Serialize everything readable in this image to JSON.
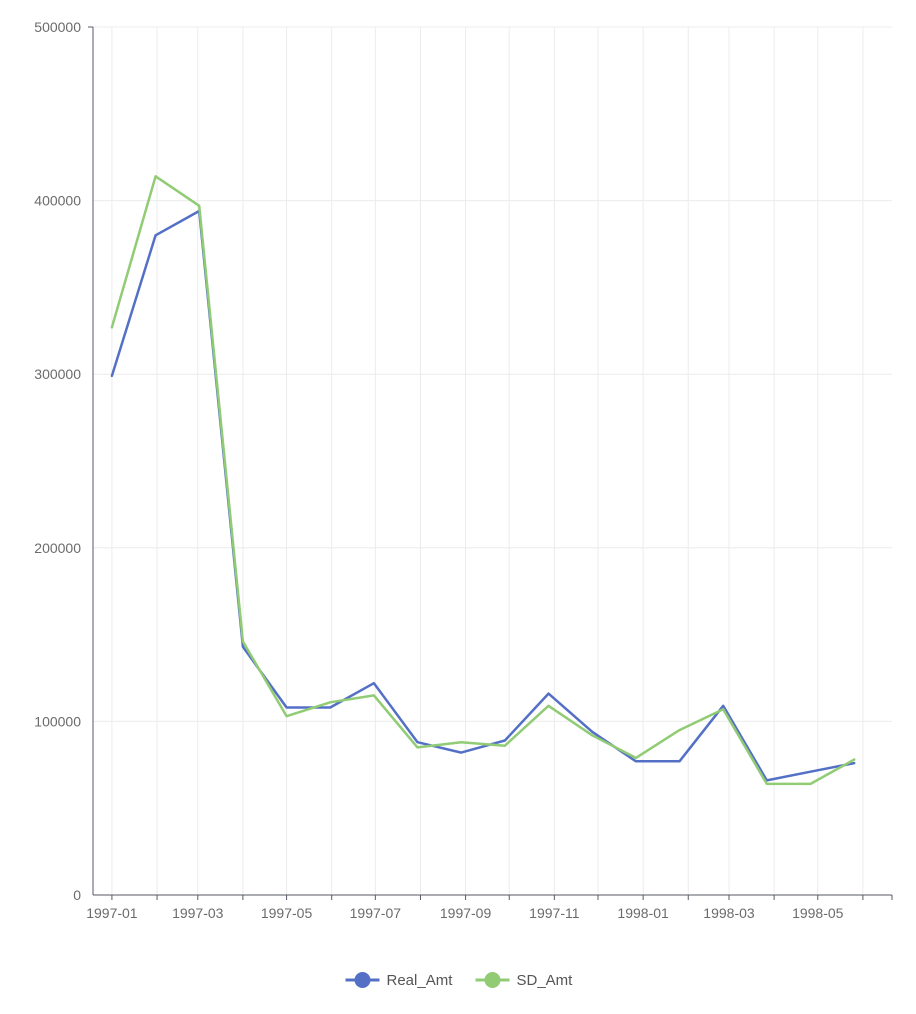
{
  "chart_data": {
    "type": "line",
    "title": "",
    "xlabel": "",
    "ylabel": "",
    "ylim": [
      0,
      500000
    ],
    "xlim": [
      "1996-12-19",
      "1998-06-21"
    ],
    "grid": true,
    "legend_position": "bottom",
    "y_ticks": [
      0,
      100000,
      200000,
      300000,
      400000,
      500000
    ],
    "y_tick_labels": [
      "0",
      "100000",
      "200000",
      "300000",
      "400000",
      "500000"
    ],
    "x_ticks": [
      "1997-01-01",
      "1997-03-01",
      "1997-05-01",
      "1997-07-01",
      "1997-09-01",
      "1997-11-01",
      "1998-01-01",
      "1998-03-01",
      "1998-05-01"
    ],
    "x_tick_labels": [
      "1997-01",
      "1997-03",
      "1997-05",
      "1997-07",
      "1997-09",
      "1997-11",
      "1998-01",
      "1998-03",
      "1998-05"
    ],
    "x_minor_ticks": [
      "1997-02-01",
      "1997-04-01",
      "1997-06-01",
      "1997-08-01",
      "1997-10-01",
      "1997-12-01",
      "1998-02-01",
      "1998-04-01",
      "1998-06-01"
    ],
    "x": [
      "1997-01-01",
      "1997-01-31",
      "1997-03-02",
      "1997-04-01",
      "1997-05-01",
      "1997-05-31",
      "1997-06-30",
      "1997-07-30",
      "1997-08-29",
      "1997-09-28",
      "1997-10-28",
      "1997-11-27",
      "1997-12-27",
      "1998-01-26",
      "1998-02-25",
      "1998-03-27",
      "1998-04-26",
      "1998-05-26"
    ],
    "series": [
      {
        "name": "Real_Amt",
        "color": "#5470c6",
        "values": [
          299000,
          380000,
          394000,
          143000,
          108000,
          108000,
          122000,
          88000,
          82000,
          89000,
          116000,
          94000,
          77000,
          77000,
          109000,
          66000,
          71000,
          76000
        ]
      },
      {
        "name": "SD_Amt",
        "color": "#91cc75",
        "values": [
          327000,
          414000,
          397000,
          146000,
          103000,
          111000,
          115000,
          85000,
          88000,
          86000,
          109000,
          92000,
          79000,
          95000,
          107000,
          64000,
          64000,
          78000
        ]
      }
    ]
  }
}
